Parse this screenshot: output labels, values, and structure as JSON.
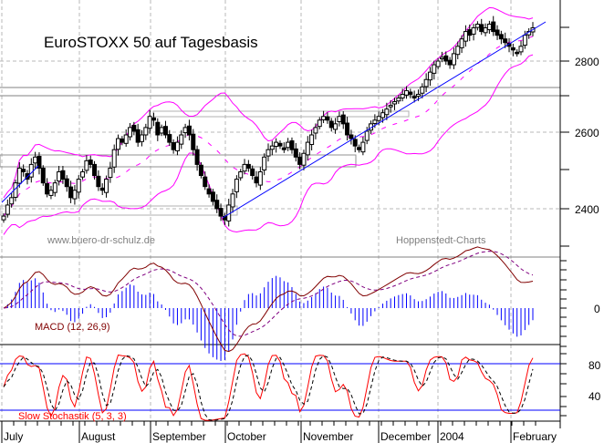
{
  "chart_data": [
    {
      "type": "candlestick",
      "title": "EuroSTOXX 50 auf Tagesbasis",
      "watermarks": [
        "www.buero-dr-schulz.de",
        "Hoppenstedt-Charts"
      ],
      "xlabel": "",
      "ylabel": "",
      "ylim": [
        2290,
        2980
      ],
      "yticks": [
        2400,
        2600,
        2800
      ],
      "grid": true,
      "x_categories": [
        "July",
        "August",
        "September",
        "October",
        "November",
        "December",
        "2004",
        "February"
      ],
      "overlays": [
        "Bollinger Bands (magenta)",
        "Trendline (blue)",
        "Support/resistance zones (grey)"
      ],
      "close_approx": [
        {
          "month": "July",
          "values": [
            2380,
            2410,
            2430,
            2470,
            2510,
            2500,
            2480,
            2520,
            2540,
            2510,
            2470,
            2440,
            2450,
            2470,
            2500,
            2480,
            2460,
            2430,
            2450,
            2480
          ]
        },
        {
          "month": "August",
          "values": [
            2500,
            2530,
            2520,
            2490,
            2460,
            2450,
            2480,
            2510,
            2560,
            2590,
            2580,
            2600,
            2620,
            2610,
            2580,
            2600,
            2620,
            2650,
            2640,
            2600
          ]
        },
        {
          "month": "September",
          "values": [
            2620,
            2600,
            2580,
            2560,
            2580,
            2600,
            2620,
            2600,
            2560,
            2520,
            2490,
            2460,
            2440,
            2420,
            2400,
            2380,
            2370,
            2410,
            2440,
            2480
          ]
        },
        {
          "month": "October",
          "values": [
            2500,
            2520,
            2510,
            2490,
            2470,
            2500,
            2540,
            2560,
            2570,
            2580,
            2570,
            2560,
            2580,
            2560,
            2540,
            2520,
            2550,
            2580,
            2600,
            2620
          ]
        },
        {
          "month": "November",
          "values": [
            2640,
            2650,
            2640,
            2620,
            2630,
            2650,
            2630,
            2600,
            2590,
            2570,
            2560,
            2580,
            2610,
            2630,
            2640,
            2650,
            2660,
            2670,
            2680,
            2690
          ]
        },
        {
          "month": "December",
          "values": [
            2700,
            2710,
            2720,
            2710,
            2700,
            2710,
            2730,
            2750,
            2770,
            2790,
            2800,
            2810,
            2800,
            2790,
            2820,
            2840
          ]
        },
        {
          "month": "2004",
          "values": [
            2860,
            2880,
            2870,
            2890,
            2900,
            2880,
            2890,
            2900,
            2880,
            2870,
            2860,
            2850,
            2840,
            2830,
            2820,
            2840,
            2870
          ]
        },
        {
          "month": "February",
          "values": [
            2880,
            2890
          ]
        }
      ]
    },
    {
      "type": "line",
      "title": "MACD (12, 26,9)",
      "yticks": [
        0
      ],
      "series": [
        {
          "name": "MACD",
          "color": "#800000",
          "style": "solid"
        },
        {
          "name": "Signal",
          "color": "#800080",
          "style": "dashed"
        },
        {
          "name": "Histogram",
          "color": "#0000ff",
          "style": "bars"
        }
      ]
    },
    {
      "type": "line",
      "title": "Slow Stochastik (5, 3, 3)",
      "yticks": [
        40,
        80
      ],
      "ylim": [
        0,
        100
      ],
      "reference_lines": [
        20,
        80
      ],
      "series": [
        {
          "name": "%K",
          "color": "#ff0000",
          "style": "solid"
        },
        {
          "name": "%D",
          "color": "#000000",
          "style": "dashed"
        }
      ]
    }
  ],
  "labels": {
    "title": "EuroSTOXX 50 auf Tagesbasis",
    "watermark_left": "www.buero-dr-schulz.de",
    "watermark_right": "Hoppenstedt-Charts",
    "macd_label": "MACD (12, 26,9)",
    "stoch_label": "Slow Stochastik (5, 3, 3)",
    "y_price": [
      "2800",
      "2600",
      "2400"
    ],
    "y_macd": [
      "0"
    ],
    "y_stoch": [
      "80",
      "40"
    ],
    "months": [
      "July",
      "August",
      "September",
      "October",
      "November",
      "December",
      "2004",
      "February"
    ]
  },
  "colors": {
    "candle": "#000000",
    "bollinger": "#ff00ff",
    "trendline": "#0000ff",
    "zones": "#a0a0a0",
    "grid": "#b8b8b8",
    "macd": "#800000",
    "signal": "#800080",
    "hist": "#0000ff",
    "stoch_k": "#ff0000",
    "stoch_d": "#000000",
    "stoch_ref": "#0000ff"
  }
}
